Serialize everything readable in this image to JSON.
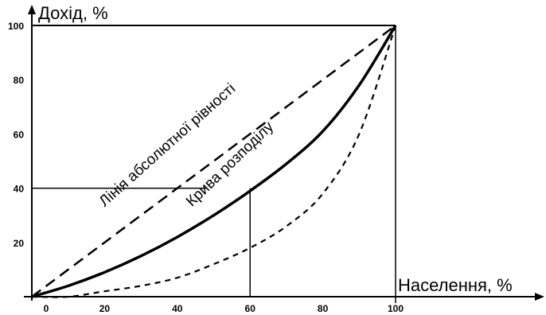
{
  "chart_data": {
    "type": "line",
    "ylabel": "Дохід, %",
    "xlabel": "Населення, %",
    "xlim": [
      0,
      100
    ],
    "ylim": [
      0,
      100
    ],
    "x_ticks": [
      "0",
      "20",
      "40",
      "60",
      "80",
      "100"
    ],
    "y_ticks": [
      "20",
      "40",
      "60",
      "80",
      "100"
    ],
    "series": [
      {
        "name": "Лінія абсолютної рівності",
        "style": "dashed",
        "x": [
          0,
          100
        ],
        "y": [
          0,
          100
        ]
      },
      {
        "name": "Крива розподілу",
        "style": "solid",
        "x": [
          0,
          10,
          20,
          30,
          40,
          50,
          60,
          70,
          80,
          90,
          100
        ],
        "y": [
          0,
          4,
          9,
          15,
          22,
          30,
          39,
          49,
          61,
          78,
          100
        ]
      },
      {
        "name": "",
        "style": "dashed-short",
        "x": [
          0,
          10,
          20,
          30,
          40,
          50,
          60,
          70,
          80,
          90,
          100
        ],
        "y": [
          0,
          0,
          2,
          4,
          7,
          12,
          18,
          26,
          38,
          60,
          100
        ]
      }
    ],
    "annotations": {
      "reference_point": {
        "x": 60,
        "y": 40
      }
    }
  }
}
